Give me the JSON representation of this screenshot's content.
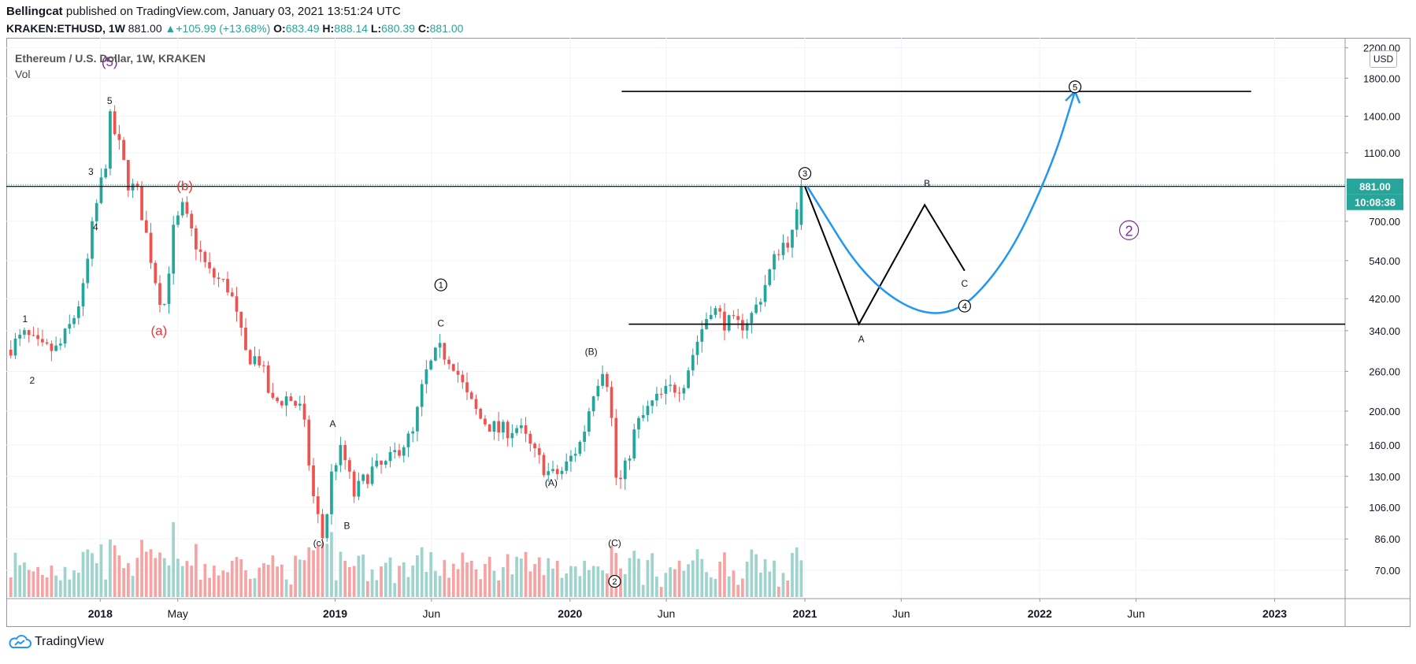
{
  "header": {
    "author": "Bellingcat",
    "published_text": "published on TradingView.com, January 03, 2021 13:51:24 UTC",
    "symbol": "KRAKEN:ETHUSD",
    "interval": "1W",
    "last": "881.00",
    "change": "+105.99 (+13.68%)",
    "o_label": "O:",
    "o": "683.49",
    "h_label": "H:",
    "h": "888.14",
    "l_label": "L:",
    "l": "680.39",
    "c_label": "C:",
    "c": "881.00"
  },
  "legend": {
    "title": "Ethereum / U.S. Dollar, 1W, KRAKEN",
    "vol": "Vol"
  },
  "price_axis": {
    "currency": "USD",
    "last_price": "881.00",
    "countdown": "10:08:38"
  },
  "brand": "TradingView",
  "colors": {
    "up": "#26a69a",
    "down": "#ef5350",
    "up_vol": "#9fd3cd",
    "down_vol": "#f5a3a3",
    "projection": "#2196f3",
    "wave": "#7b2d9e",
    "red_label": "#e53935"
  },
  "chart_data": {
    "type": "candlestick",
    "title": "Ethereum / U.S. Dollar, 1W, KRAKEN",
    "y_scale": "log",
    "ylim": [
      58,
      2350
    ],
    "y_ticks": [
      "2200.00",
      "1800.00",
      "1400.00",
      "1100.00",
      "700.00",
      "540.00",
      "420.00",
      "340.00",
      "260.00",
      "200.00",
      "160.00",
      "130.00",
      "106.00",
      "86.00",
      "70.00"
    ],
    "x_ticks": [
      {
        "label": "2018",
        "t": 2018.0
      },
      {
        "label": "May",
        "t": 2018.33
      },
      {
        "label": "2019",
        "t": 2019.0
      },
      {
        "label": "Jun",
        "t": 2019.41
      },
      {
        "label": "2020",
        "t": 2020.0
      },
      {
        "label": "Jun",
        "t": 2020.41
      },
      {
        "label": "2021",
        "t": 2021.0
      },
      {
        "label": "Jun",
        "t": 2021.41
      },
      {
        "label": "2022",
        "t": 2022.0
      },
      {
        "label": "Jun",
        "t": 2022.41
      },
      {
        "label": "2023",
        "t": 2023.0
      }
    ],
    "xlim": [
      2017.6,
      2023.3
    ],
    "price_path": [
      [
        2017.6,
        300
      ],
      [
        2017.68,
        330
      ],
      [
        2017.75,
        300
      ],
      [
        2017.82,
        300
      ],
      [
        2017.88,
        360
      ],
      [
        2017.93,
        450
      ],
      [
        2017.97,
        700
      ],
      [
        2018.03,
        1100
      ],
      [
        2018.04,
        1380
      ],
      [
        2018.08,
        1150
      ],
      [
        2018.12,
        900
      ],
      [
        2018.16,
        840
      ],
      [
        2018.2,
        620
      ],
      [
        2018.24,
        460
      ],
      [
        2018.27,
        390
      ],
      [
        2018.31,
        650
      ],
      [
        2018.35,
        760
      ],
      [
        2018.4,
        620
      ],
      [
        2018.46,
        500
      ],
      [
        2018.55,
        450
      ],
      [
        2018.62,
        290
      ],
      [
        2018.68,
        280
      ],
      [
        2018.73,
        210
      ],
      [
        2018.8,
        220
      ],
      [
        2018.86,
        200
      ],
      [
        2018.91,
        110
      ],
      [
        2018.95,
        85
      ],
      [
        2018.99,
        140
      ],
      [
        2019.03,
        155
      ],
      [
        2019.08,
        115
      ],
      [
        2019.15,
        135
      ],
      [
        2019.22,
        140
      ],
      [
        2019.28,
        160
      ],
      [
        2019.33,
        170
      ],
      [
        2019.38,
        250
      ],
      [
        2019.44,
        300
      ],
      [
        2019.5,
        280
      ],
      [
        2019.56,
        220
      ],
      [
        2019.62,
        190
      ],
      [
        2019.7,
        175
      ],
      [
        2019.78,
        180
      ],
      [
        2019.85,
        150
      ],
      [
        2019.92,
        130
      ],
      [
        2019.97,
        135
      ],
      [
        2020.05,
        165
      ],
      [
        2020.1,
        230
      ],
      [
        2020.14,
        270
      ],
      [
        2020.17,
        230
      ],
      [
        2020.19,
        130
      ],
      [
        2020.22,
        125
      ],
      [
        2020.28,
        180
      ],
      [
        2020.35,
        210
      ],
      [
        2020.42,
        230
      ],
      [
        2020.48,
        240
      ],
      [
        2020.55,
        330
      ],
      [
        2020.6,
        400
      ],
      [
        2020.66,
        360
      ],
      [
        2020.72,
        350
      ],
      [
        2020.78,
        380
      ],
      [
        2020.83,
        460
      ],
      [
        2020.89,
        590
      ],
      [
        2020.95,
        640
      ],
      [
        2020.99,
        881
      ]
    ],
    "volume_scale": "relative",
    "annotations": {
      "legacy_wave_labels": [
        {
          "text": "(5)",
          "t": 2018.04,
          "price": 1950,
          "color": "wave"
        },
        {
          "text": "5",
          "t": 2018.04,
          "price": 1520
        },
        {
          "text": "3",
          "t": 2017.96,
          "price": 950
        },
        {
          "text": "4",
          "t": 2017.98,
          "price": 660
        },
        {
          "text": "1",
          "t": 2017.68,
          "price": 360
        },
        {
          "text": "2",
          "t": 2017.71,
          "price": 240
        },
        {
          "text": "(b)",
          "t": 2018.36,
          "price": 860,
          "color": "red_label"
        },
        {
          "text": "(a)",
          "t": 2018.25,
          "price": 330,
          "color": "red_label"
        },
        {
          "text": "A",
          "t": 2018.99,
          "price": 180
        },
        {
          "text": "B",
          "t": 2019.05,
          "price": 92
        },
        {
          "text": "(c)",
          "t": 2018.93,
          "price": 82
        },
        {
          "text": "C",
          "t": 2019.45,
          "price": 350
        },
        {
          "text": "(A)",
          "t": 2019.92,
          "price": 122
        },
        {
          "text": "(B)",
          "t": 2020.09,
          "price": 290
        },
        {
          "text": "(C)",
          "t": 2020.19,
          "price": 82
        }
      ],
      "circled_waves": [
        {
          "text": "1",
          "t": 2019.45,
          "price": 460
        },
        {
          "text": "2",
          "t": 2020.19,
          "price": 65
        },
        {
          "text": "3",
          "t": 2021.0,
          "price": 960
        },
        {
          "text": "4",
          "t": 2021.68,
          "price": 400
        },
        {
          "text": "5",
          "t": 2022.15,
          "price": 1700
        }
      ],
      "big_wave_label": {
        "text": "2",
        "t": 2022.38,
        "price": 660,
        "color": "wave"
      },
      "projection_labels": [
        {
          "text": "B",
          "t": 2021.52,
          "price": 880
        },
        {
          "text": "A",
          "t": 2021.24,
          "price": 315
        },
        {
          "text": "C",
          "t": 2021.68,
          "price": 455
        }
      ],
      "horizontal_lines": [
        {
          "price": 881,
          "t_start": 2017.6,
          "t_end": 2023.3,
          "note": "last price line"
        },
        {
          "price": 1650,
          "t_start": 2020.22,
          "t_end": 2022.9
        },
        {
          "price": 355,
          "t_start": 2020.25,
          "t_end": 2023.3
        }
      ],
      "abc_projection": [
        [
          2021.0,
          881
        ],
        [
          2021.23,
          355
        ],
        [
          2021.51,
          780
        ],
        [
          2021.68,
          505
        ]
      ],
      "blue_projection": [
        [
          2021.01,
          881
        ],
        [
          2021.28,
          450
        ],
        [
          2021.6,
          355
        ],
        [
          2021.85,
          520
        ],
        [
          2022.05,
          1000
        ],
        [
          2022.15,
          1650
        ]
      ]
    }
  }
}
